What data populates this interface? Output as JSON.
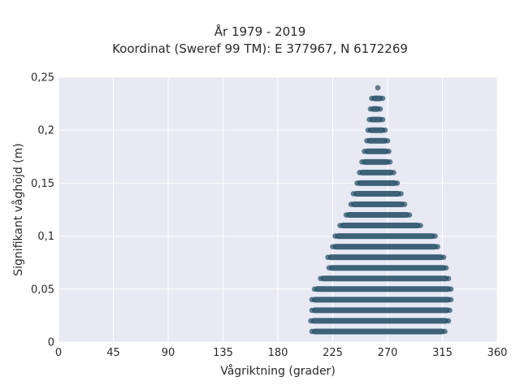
{
  "chart_data": {
    "type": "scatter",
    "title": "År 1979 - 2019",
    "subtitle": "Koordinat (Sweref 99 TM): E 377967, N 6172269",
    "xlabel": "Vågriktning (grader)",
    "ylabel": "Signifikant våghöjd (m)",
    "xlim": [
      0,
      360
    ],
    "ylim": [
      0,
      0.25
    ],
    "xticks": [
      0,
      45,
      90,
      135,
      180,
      225,
      270,
      315,
      360
    ],
    "xtick_labels": [
      "0",
      "45",
      "90",
      "135",
      "180",
      "225",
      "270",
      "315",
      "360"
    ],
    "yticks": [
      0,
      0.05,
      0.1,
      0.15,
      0.2,
      0.25
    ],
    "ytick_labels": [
      "0",
      "0,05",
      "0,1",
      "0,15",
      "0,2",
      "0,25"
    ],
    "grid": true,
    "background": "#e8e9f3",
    "marker_color": "#2e566e",
    "bands": [
      {
        "y": 0.01,
        "xmin": 208,
        "xmax": 317
      },
      {
        "y": 0.02,
        "xmin": 207,
        "xmax": 320
      },
      {
        "y": 0.03,
        "xmin": 208,
        "xmax": 321
      },
      {
        "y": 0.04,
        "xmin": 208,
        "xmax": 322
      },
      {
        "y": 0.05,
        "xmin": 210,
        "xmax": 322
      },
      {
        "y": 0.06,
        "xmin": 215,
        "xmax": 320
      },
      {
        "y": 0.07,
        "xmin": 222,
        "xmax": 318
      },
      {
        "y": 0.08,
        "xmin": 221,
        "xmax": 316
      },
      {
        "y": 0.09,
        "xmin": 225,
        "xmax": 311
      },
      {
        "y": 0.1,
        "xmin": 227,
        "xmax": 309
      },
      {
        "y": 0.11,
        "xmin": 231,
        "xmax": 297
      },
      {
        "y": 0.12,
        "xmin": 236,
        "xmax": 288
      },
      {
        "y": 0.13,
        "xmin": 240,
        "xmax": 284
      },
      {
        "y": 0.14,
        "xmin": 242,
        "xmax": 281
      },
      {
        "y": 0.15,
        "xmin": 245,
        "xmax": 278
      },
      {
        "y": 0.16,
        "xmin": 247,
        "xmax": 275
      },
      {
        "y": 0.17,
        "xmin": 249,
        "xmax": 272
      },
      {
        "y": 0.18,
        "xmin": 251,
        "xmax": 271
      },
      {
        "y": 0.19,
        "xmin": 253,
        "xmax": 270
      },
      {
        "y": 0.2,
        "xmin": 254,
        "xmax": 268
      },
      {
        "y": 0.21,
        "xmin": 255,
        "xmax": 266
      },
      {
        "y": 0.22,
        "xmin": 256,
        "xmax": 264
      },
      {
        "y": 0.23,
        "xmin": 257,
        "xmax": 266
      },
      {
        "y": 0.24,
        "xmin": 262,
        "xmax": 262
      }
    ]
  }
}
